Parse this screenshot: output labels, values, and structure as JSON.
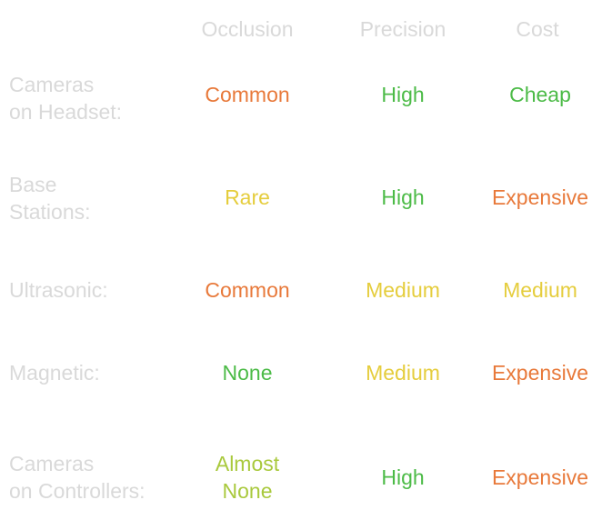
{
  "headers": [
    "Occlusion",
    "Precision",
    "Cost"
  ],
  "colors": {
    "common": "#e8793a",
    "good": "#4cbb47",
    "medium": "#e5cd3d",
    "almost": "#a9c93d",
    "label": "#d9d9d9"
  },
  "rows": [
    {
      "label": "Cameras\non Headset:",
      "occlusion": "Common",
      "precision": "High",
      "cost": "Cheap",
      "c": [
        "#e8793a",
        "#4cbb47",
        "#4cbb47"
      ]
    },
    {
      "label": "Base\nStations:",
      "occlusion": "Rare",
      "precision": "High",
      "cost": "Expensive",
      "c": [
        "#e5cd3d",
        "#4cbb47",
        "#e8793a"
      ]
    },
    {
      "label": "Ultrasonic:",
      "occlusion": "Common",
      "precision": "Medium",
      "cost": "Medium",
      "c": [
        "#e8793a",
        "#e5cd3d",
        "#e5cd3d"
      ]
    },
    {
      "label": "Magnetic:",
      "occlusion": "None",
      "precision": "Medium",
      "cost": "Expensive",
      "c": [
        "#4cbb47",
        "#e5cd3d",
        "#e8793a"
      ]
    },
    {
      "label": "Cameras\non Controllers:",
      "occlusion": "Almost\nNone",
      "precision": "High",
      "cost": "Expensive",
      "c": [
        "#a9c93d",
        "#4cbb47",
        "#e8793a"
      ]
    }
  ]
}
